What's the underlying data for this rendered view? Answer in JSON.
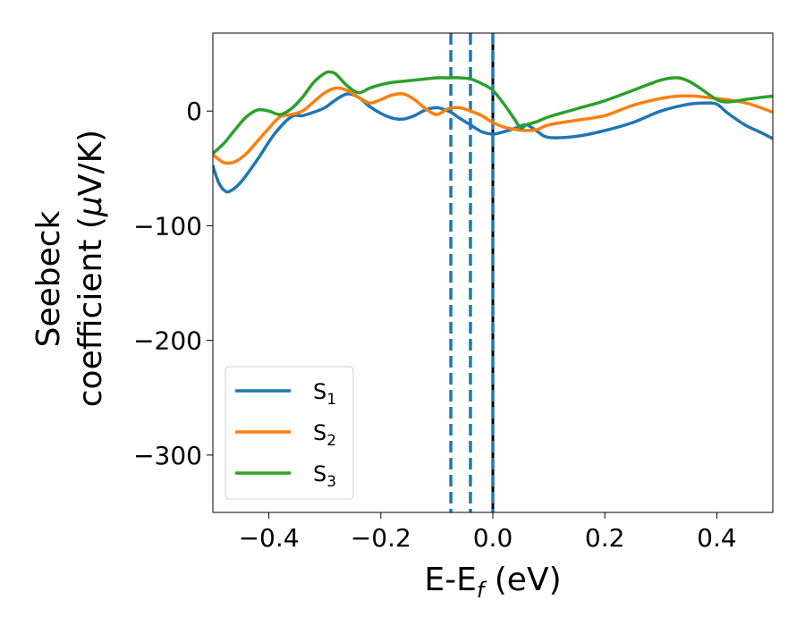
{
  "chart_data": {
    "type": "line",
    "xlabel": {
      "main": "E-E",
      "sub": "f",
      "unit": " (eV)"
    },
    "ylabel": {
      "line1": "Seebeck",
      "line2_prefix": "coefficient  (",
      "mu": "μ",
      "line2_suffix": "V/K)"
    },
    "xlim": [
      -0.5,
      0.5
    ],
    "ylim": [
      -350,
      68
    ],
    "xticks": [
      -0.4,
      -0.2,
      0.0,
      0.2,
      0.4
    ],
    "xtick_labels": [
      "−0.4",
      "−0.2",
      "0.0",
      "0.2",
      "0.4"
    ],
    "yticks": [
      0,
      -100,
      -200,
      -300
    ],
    "ytick_labels": [
      "0",
      "−100",
      "−200",
      "−300"
    ],
    "grid": false,
    "legend_position": "lower-left",
    "vlines": [
      {
        "x": -0.075,
        "style": "dashed",
        "color": "#1f77b4"
      },
      {
        "x": -0.04,
        "style": "dashed",
        "color": "#1f77b4"
      },
      {
        "x": 0.0,
        "style": "solid",
        "color": "#000000"
      },
      {
        "x": 0.0,
        "style": "dashed",
        "color": "#1f77b4"
      }
    ],
    "series": [
      {
        "name": "S",
        "sub": "1",
        "color": "#1f77b4",
        "x": [
          -0.5,
          -0.49,
          -0.48,
          -0.47,
          -0.45,
          -0.42,
          -0.39,
          -0.36,
          -0.34,
          -0.32,
          -0.3,
          -0.28,
          -0.26,
          -0.24,
          -0.22,
          -0.2,
          -0.18,
          -0.16,
          -0.14,
          -0.12,
          -0.1,
          -0.085,
          -0.075,
          -0.06,
          -0.04,
          -0.02,
          0.0,
          0.02,
          0.04,
          0.06,
          0.08,
          0.1,
          0.15,
          0.2,
          0.25,
          0.3,
          0.35,
          0.38,
          0.4,
          0.42,
          0.45,
          0.48,
          0.5
        ],
        "y": [
          -48,
          -62,
          -69,
          -70,
          -62,
          -42,
          -20,
          -5,
          -4,
          -1,
          3,
          10,
          15,
          12,
          4,
          -2,
          -6,
          -7,
          -4,
          1,
          3,
          1,
          -1,
          -6,
          -12,
          -18,
          -20,
          -18,
          -15,
          -12,
          -18,
          -23,
          -22,
          -17,
          -10,
          0,
          6,
          7,
          6,
          -2,
          -12,
          -19,
          -24
        ]
      },
      {
        "name": "S",
        "sub": "2",
        "color": "#ff7f0e",
        "x": [
          -0.5,
          -0.48,
          -0.46,
          -0.44,
          -0.42,
          -0.4,
          -0.38,
          -0.36,
          -0.34,
          -0.32,
          -0.3,
          -0.28,
          -0.26,
          -0.24,
          -0.22,
          -0.2,
          -0.18,
          -0.16,
          -0.14,
          -0.12,
          -0.1,
          -0.08,
          -0.06,
          -0.04,
          -0.02,
          0.0,
          0.02,
          0.04,
          0.06,
          0.08,
          0.1,
          0.15,
          0.2,
          0.25,
          0.3,
          0.33,
          0.36,
          0.38,
          0.4,
          0.43,
          0.46,
          0.5
        ],
        "y": [
          -38,
          -45,
          -44,
          -37,
          -26,
          -15,
          -5,
          -3,
          0,
          8,
          16,
          20,
          18,
          12,
          7,
          10,
          14,
          15,
          10,
          2,
          -3,
          2,
          3,
          0,
          -4,
          -10,
          -14,
          -16,
          -17,
          -16,
          -12,
          -8,
          -4,
          5,
          11,
          13,
          13,
          12,
          11,
          9,
          6,
          -1
        ]
      },
      {
        "name": "S",
        "sub": "3",
        "color": "#2ca02c",
        "x": [
          -0.5,
          -0.48,
          -0.46,
          -0.44,
          -0.42,
          -0.4,
          -0.38,
          -0.36,
          -0.34,
          -0.32,
          -0.3,
          -0.29,
          -0.28,
          -0.26,
          -0.24,
          -0.22,
          -0.2,
          -0.18,
          -0.16,
          -0.14,
          -0.12,
          -0.1,
          -0.08,
          -0.06,
          -0.04,
          -0.02,
          0.0,
          0.02,
          0.04,
          0.05,
          0.06,
          0.08,
          0.1,
          0.15,
          0.2,
          0.25,
          0.3,
          0.33,
          0.35,
          0.37,
          0.4,
          0.42,
          0.45,
          0.48,
          0.5
        ],
        "y": [
          -37,
          -28,
          -16,
          -5,
          1,
          0,
          -3,
          2,
          12,
          25,
          33,
          34,
          32,
          22,
          16,
          20,
          23,
          25,
          26,
          27,
          28,
          29,
          29,
          29,
          28,
          24,
          18,
          6,
          -8,
          -15,
          -12,
          -9,
          -5,
          2,
          9,
          18,
          27,
          29,
          26,
          20,
          10,
          8,
          10,
          12,
          13
        ]
      }
    ]
  }
}
